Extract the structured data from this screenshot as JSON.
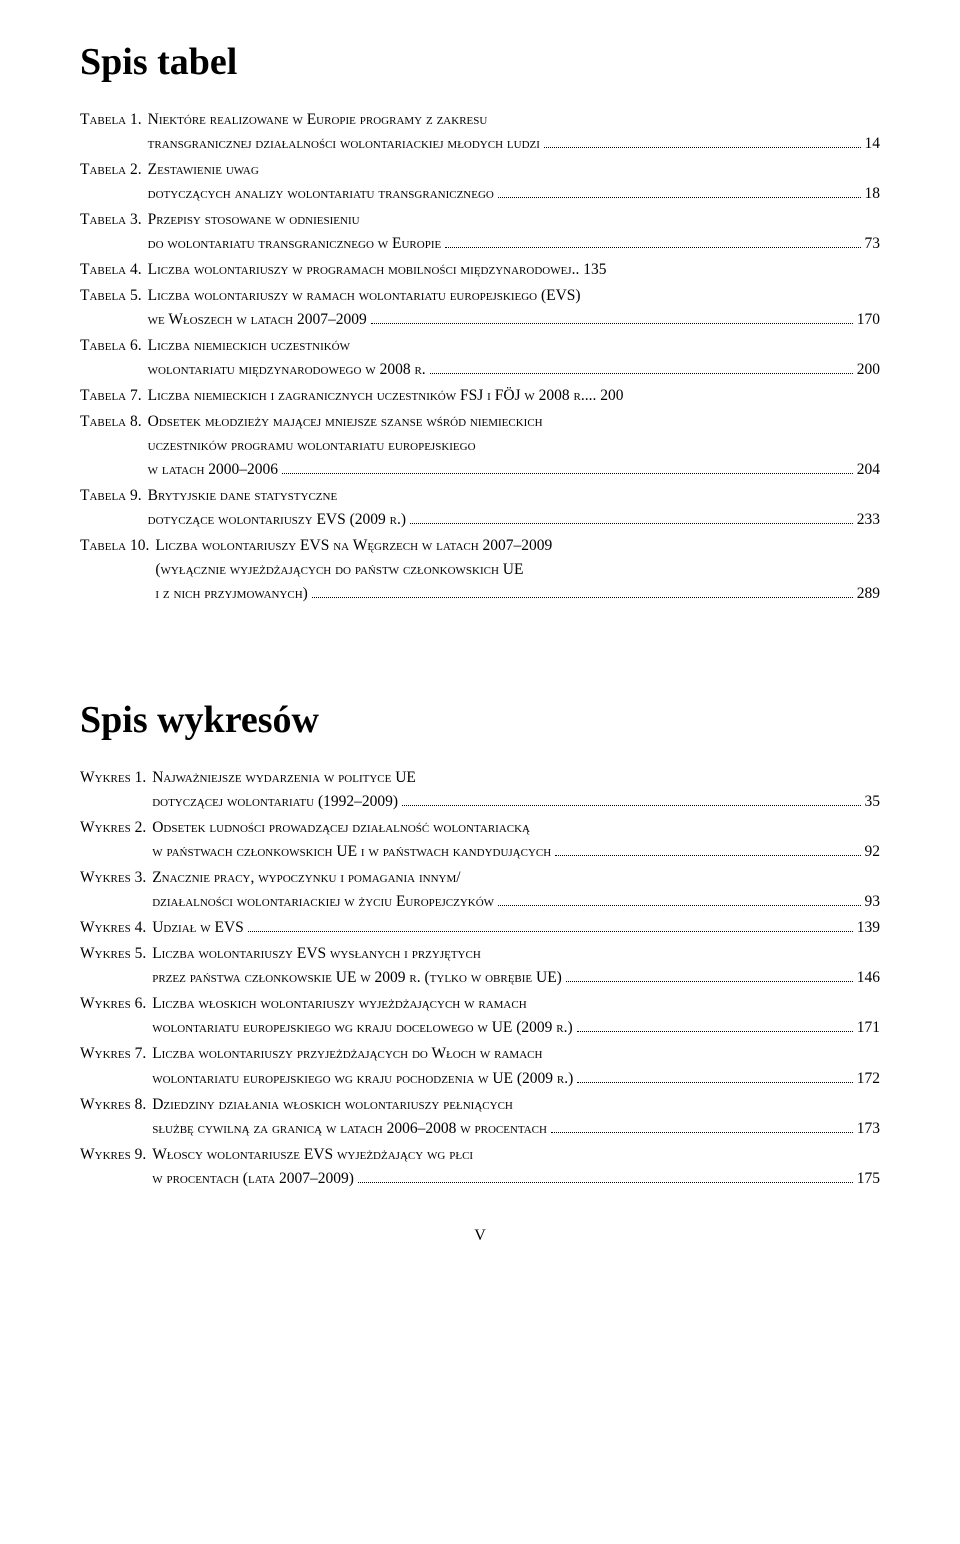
{
  "headings": {
    "tables": "Spis tabel",
    "charts": "Spis wykresów"
  },
  "tables": [
    {
      "label": "Tabela 1.",
      "lines": [
        "Niektóre realizowane w Europie programy z zakresu"
      ],
      "last": "transgranicznej działalności wolontariackiej młodych ludzi",
      "page": "14"
    },
    {
      "label": "Tabela 2.",
      "lines": [
        "Zestawienie uwag"
      ],
      "last": "dotyczących analizy wolontariatu transgranicznego",
      "page": "18"
    },
    {
      "label": "Tabela 3.",
      "lines": [
        "Przepisy stosowane w odniesieniu"
      ],
      "last": "do wolontariatu transgranicznego w Europie",
      "page": "73"
    },
    {
      "label": "Tabela 4.",
      "lines": [],
      "last": "Liczba wolontariuszy w programach mobilności międzynarodowej",
      "page": ".. 135"
    },
    {
      "label": "Tabela 5.",
      "lines": [
        "Liczba wolontariuszy w ramach wolontariatu europejskiego (EVS)"
      ],
      "last": "we Włoszech w latach 2007–2009",
      "page": "170"
    },
    {
      "label": "Tabela 6.",
      "lines": [
        "Liczba niemieckich uczestników"
      ],
      "last": "wolontariatu międzynarodowego w 2008 r.",
      "page": "200"
    },
    {
      "label": "Tabela 7.",
      "lines": [],
      "last": "Liczba niemieckich i zagranicznych uczestników FSJ i FÖJ w 2008 r.",
      "page": "... 200"
    },
    {
      "label": "Tabela 8.",
      "lines": [
        "Odsetek młodzieży mającej mniejsze szanse wśród niemieckich",
        "uczestników programu wolontariatu europejskiego"
      ],
      "last": "w latach 2000–2006",
      "page": "204"
    },
    {
      "label": "Tabela 9.",
      "lines": [
        "Brytyjskie dane statystyczne"
      ],
      "last": "dotyczące wolontariuszy EVS (2009 r.)",
      "page": "233"
    },
    {
      "label": "Tabela 10.",
      "lines": [
        "Liczba wolontariuszy EVS na Węgrzech w latach 2007–2009",
        "(wyłącznie wyjeżdżających do państw członkowskich UE"
      ],
      "last": "i z nich przyjmowanych)",
      "page": "289"
    }
  ],
  "charts": [
    {
      "label": "Wykres 1.",
      "lines": [
        "Najważniejsze wydarzenia w polityce UE"
      ],
      "last": "dotyczącej wolontariatu (1992–2009)",
      "page": "35"
    },
    {
      "label": "Wykres 2.",
      "lines": [
        "Odsetek ludności prowadzącej działalność wolontariacką"
      ],
      "last": "w państwach członkowskich UE i w państwach kandydujących",
      "page": "92"
    },
    {
      "label": "Wykres 3.",
      "lines": [
        "Znacznie pracy, wypoczynku i pomagania innym/"
      ],
      "last": "działalności wolontariackiej w życiu Europejczyków",
      "page": "93"
    },
    {
      "label": "Wykres 4.",
      "lines": [],
      "last": "Udział w EVS",
      "page": "139"
    },
    {
      "label": "Wykres 5.",
      "lines": [
        "Liczba wolontariuszy EVS wysłanych i przyjętych"
      ],
      "last": "przez państwa członkowskie UE w 2009 r. (tylko w obrębie UE)",
      "page": "146"
    },
    {
      "label": "Wykres 6.",
      "lines": [
        "Liczba włoskich wolontariuszy wyjeżdżających w ramach"
      ],
      "last": "wolontariatu europejskiego wg kraju docelowego w UE (2009 r.)",
      "page": "171"
    },
    {
      "label": "Wykres 7.",
      "lines": [
        "Liczba wolontariuszy przyjeżdżających do Włoch w ramach"
      ],
      "last": "wolontariatu europejskiego wg kraju pochodzenia w UE (2009 r.)",
      "page": "172"
    },
    {
      "label": "Wykres 8.",
      "lines": [
        "Dziedziny działania włoskich wolontariuszy pełniących"
      ],
      "last": "służbę cywilną za granicą w latach 2006–2008 w procentach",
      "page": "173"
    },
    {
      "label": "Wykres 9.",
      "lines": [
        "Włoscy wolontariusze EVS wyjeżdżający wg płci"
      ],
      "last": "w procentach (lata 2007–2009)",
      "page": "175"
    }
  ],
  "pageNumber": "V"
}
